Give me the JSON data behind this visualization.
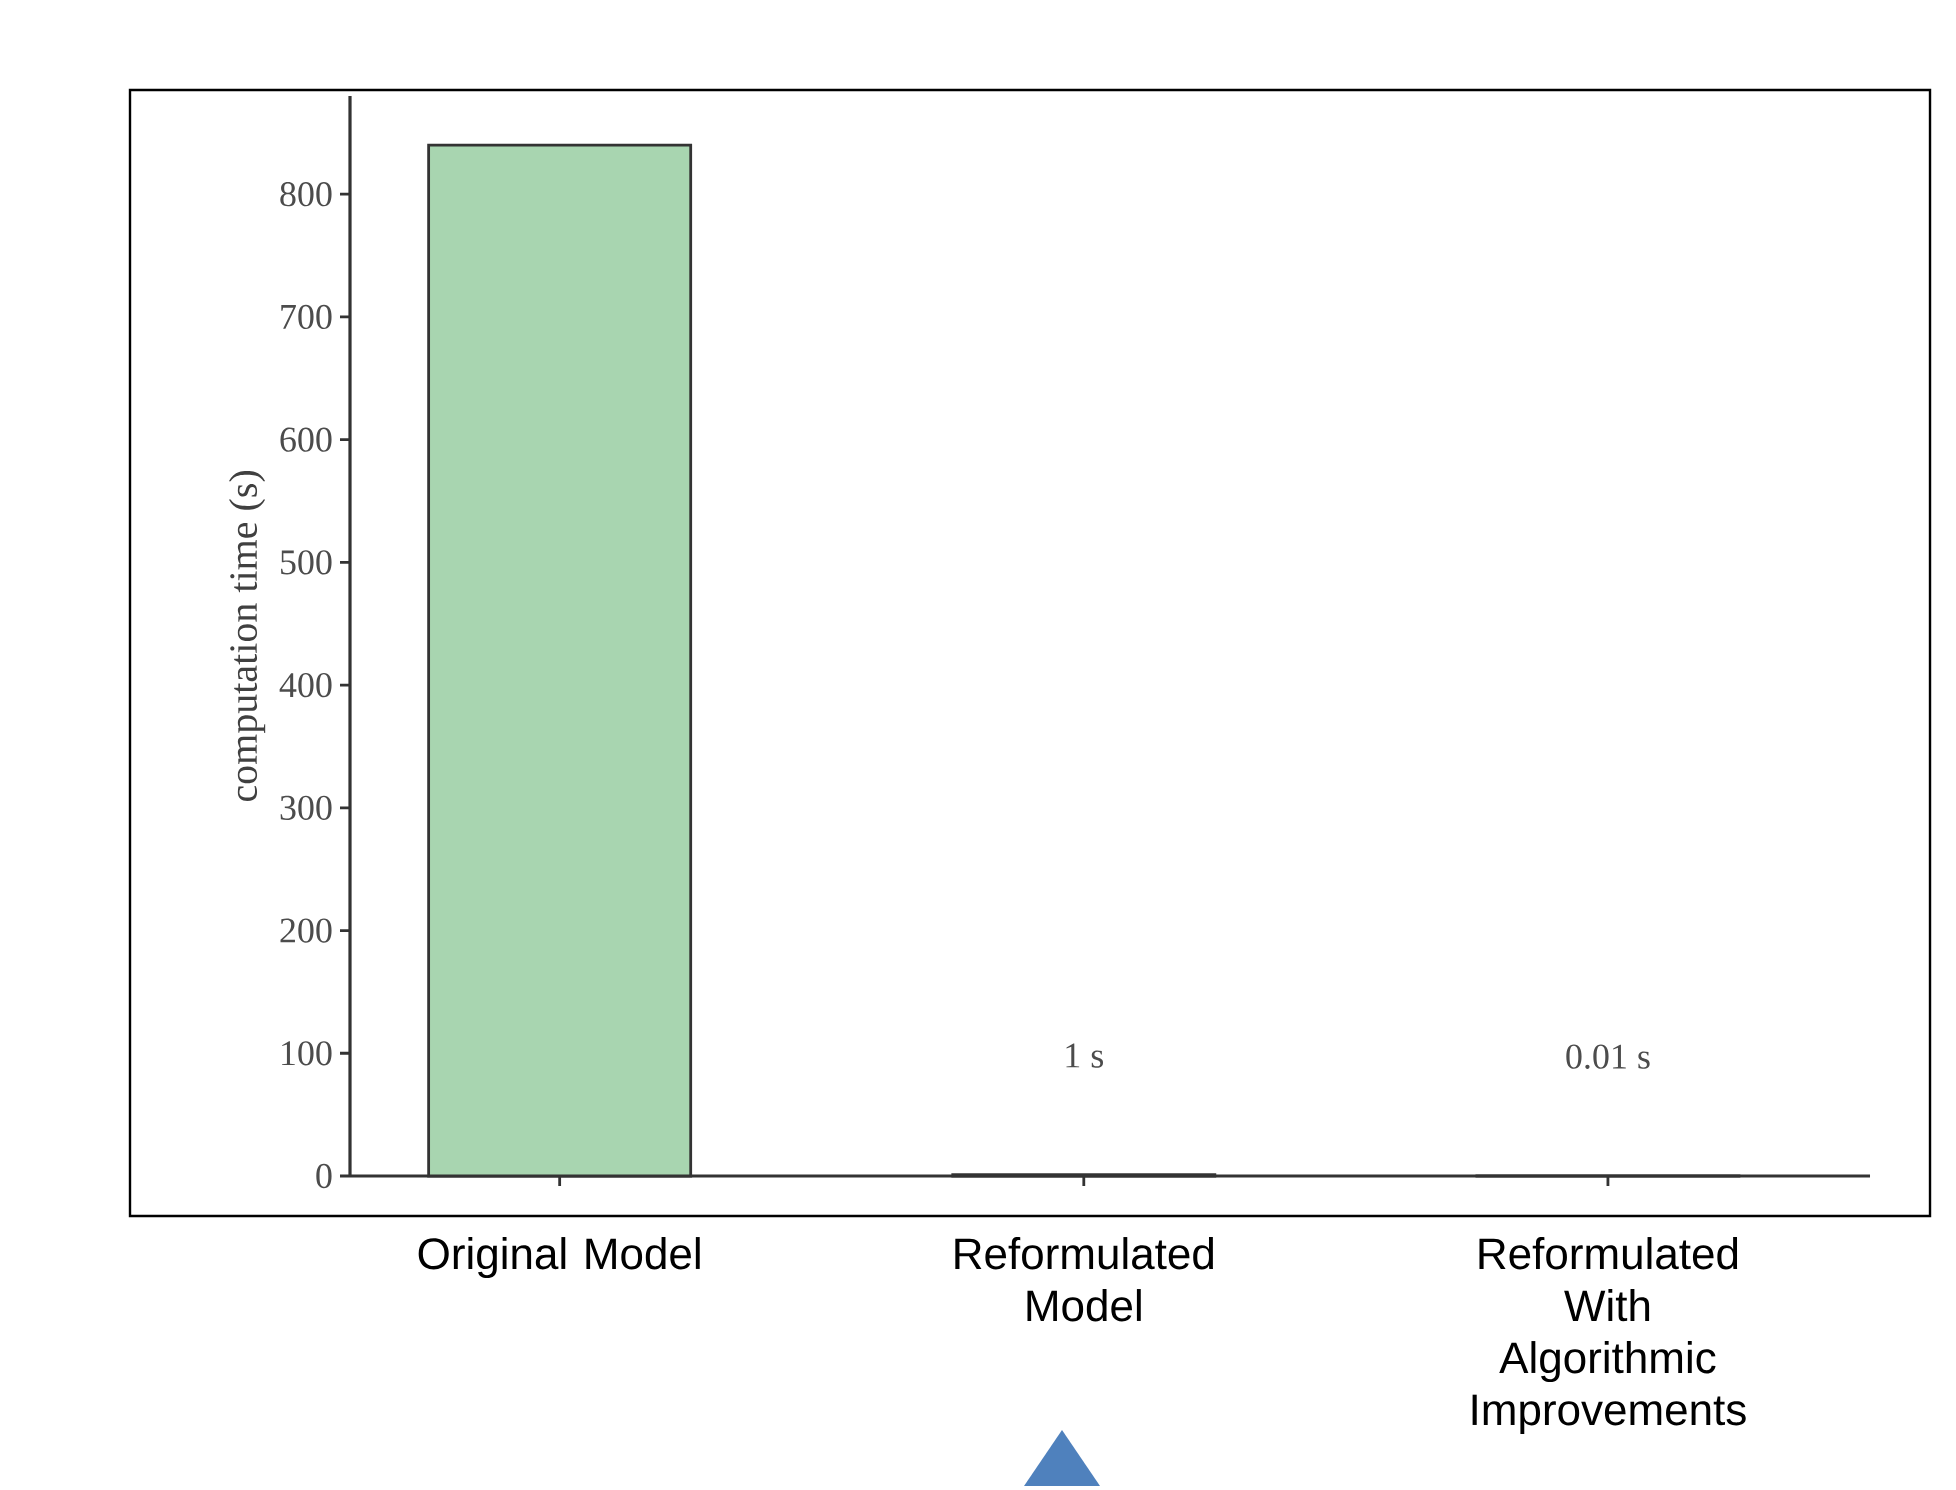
{
  "chart_data": {
    "type": "bar",
    "ylabel": "computation time (s)",
    "categories": [
      "Original Model",
      "Reformulated Model",
      "Reformulated With Algorithmic Improvements"
    ],
    "values": [
      840,
      1,
      0.01
    ],
    "colors": [
      "#a8d5b0",
      "#4a8a7c",
      "#404040"
    ],
    "value_labels": [
      null,
      "1 s",
      "0.01 s"
    ],
    "ylim": [
      0,
      880
    ],
    "yticks": [
      0,
      100,
      200,
      300,
      400,
      500,
      600,
      700,
      800
    ],
    "grid": false
  }
}
